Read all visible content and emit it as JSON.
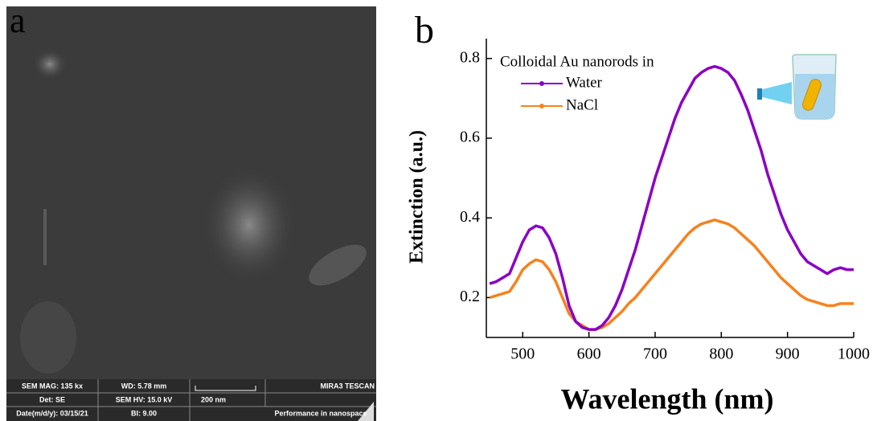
{
  "panel_a": {
    "label": "a",
    "info": [
      [
        "SEM MAG: 135 kx",
        "WD: 5.78 mm",
        "MIRA3 TESCAN"
      ],
      [
        "Det: SE",
        "SEM HV: 15.0 kV",
        "200 nm"
      ],
      [
        "Date(m/d/y): 03/15/21",
        "BI: 9.00",
        "Performance in nanospace"
      ]
    ]
  },
  "chart_data": {
    "type": "line",
    "panel_label": "b",
    "xlabel": "Wavelength (nm)",
    "ylabel": "Extinction (a.u.)",
    "legend_title": "Colloidal Au nanorods in",
    "x": [
      450,
      460,
      470,
      480,
      490,
      500,
      510,
      520,
      530,
      540,
      550,
      560,
      570,
      580,
      590,
      600,
      610,
      620,
      630,
      640,
      650,
      660,
      670,
      680,
      690,
      700,
      710,
      720,
      730,
      740,
      750,
      760,
      770,
      780,
      790,
      800,
      810,
      820,
      830,
      840,
      850,
      860,
      870,
      880,
      890,
      900,
      910,
      920,
      930,
      940,
      950,
      960,
      970,
      980,
      990,
      1000
    ],
    "series": [
      {
        "name": "Water",
        "color": "#8a00c4",
        "values": [
          0.235,
          0.24,
          0.25,
          0.26,
          0.3,
          0.34,
          0.37,
          0.38,
          0.375,
          0.35,
          0.31,
          0.25,
          0.18,
          0.14,
          0.125,
          0.12,
          0.12,
          0.13,
          0.15,
          0.18,
          0.22,
          0.27,
          0.32,
          0.38,
          0.44,
          0.5,
          0.55,
          0.6,
          0.65,
          0.69,
          0.72,
          0.75,
          0.765,
          0.775,
          0.78,
          0.775,
          0.765,
          0.745,
          0.71,
          0.67,
          0.62,
          0.57,
          0.51,
          0.46,
          0.41,
          0.37,
          0.34,
          0.31,
          0.29,
          0.28,
          0.27,
          0.26,
          0.27,
          0.275,
          0.27,
          0.27
        ]
      },
      {
        "name": "NaCl",
        "color": "#f5821f",
        "values": [
          0.2,
          0.205,
          0.21,
          0.215,
          0.24,
          0.27,
          0.285,
          0.295,
          0.29,
          0.27,
          0.24,
          0.2,
          0.16,
          0.14,
          0.13,
          0.12,
          0.12,
          0.125,
          0.135,
          0.15,
          0.165,
          0.185,
          0.2,
          0.22,
          0.24,
          0.26,
          0.28,
          0.3,
          0.32,
          0.34,
          0.36,
          0.375,
          0.385,
          0.39,
          0.395,
          0.39,
          0.385,
          0.375,
          0.36,
          0.345,
          0.33,
          0.31,
          0.29,
          0.27,
          0.25,
          0.235,
          0.22,
          0.205,
          0.195,
          0.19,
          0.185,
          0.18,
          0.18,
          0.185,
          0.185,
          0.185
        ]
      }
    ],
    "xlim": [
      445,
      1000
    ],
    "xticks": [
      500,
      600,
      700,
      800,
      900,
      1000
    ],
    "ylim": [
      0.1,
      0.85
    ],
    "yticks": [
      0.2,
      0.4,
      0.6,
      0.8
    ]
  }
}
